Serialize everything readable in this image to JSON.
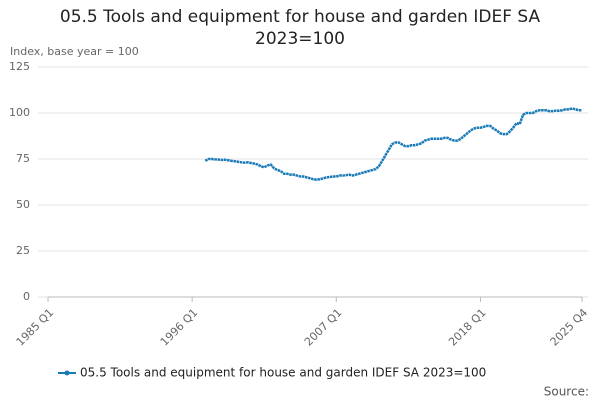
{
  "chart_data": {
    "type": "line",
    "title": "05.5 Tools and equipment for house and garden IDEF SA 2023=100",
    "y_label": "Index, base year = 100",
    "source": "Source:",
    "categories": [
      "1985 Q1",
      null,
      null,
      null,
      null,
      null,
      null,
      null,
      null,
      null,
      null,
      null,
      null,
      null,
      null,
      null,
      null,
      null,
      null,
      null,
      null,
      null,
      null,
      null,
      null,
      null,
      null,
      null,
      null,
      null,
      null,
      null,
      null,
      null,
      null,
      null,
      null,
      null,
      null,
      null,
      null,
      null,
      null,
      null,
      "1996 Q1",
      null,
      null,
      null,
      null,
      null,
      null,
      null,
      null,
      null,
      null,
      null,
      null,
      null,
      null,
      null,
      null,
      null,
      null,
      null,
      null,
      null,
      null,
      null,
      null,
      null,
      null,
      null,
      null,
      null,
      null,
      null,
      null,
      null,
      null,
      null,
      null,
      null,
      null,
      null,
      null,
      null,
      null,
      null,
      "2007 Q1",
      null,
      null,
      null,
      null,
      null,
      null,
      null,
      null,
      null,
      null,
      null,
      null,
      null,
      null,
      null,
      null,
      null,
      null,
      null,
      null,
      null,
      null,
      null,
      null,
      null,
      null,
      null,
      null,
      null,
      null,
      null,
      null,
      null,
      null,
      null,
      null,
      null,
      null,
      null,
      null,
      null,
      null,
      null,
      "2018 Q1",
      null,
      null,
      null,
      null,
      null,
      null,
      null,
      null,
      null,
      null,
      null,
      null,
      null,
      null,
      null,
      null,
      null,
      null,
      null,
      null,
      null,
      null,
      null,
      null,
      null,
      null,
      null,
      null,
      null,
      null,
      "2025 Q4"
    ],
    "series": [
      {
        "name": "05.5 Tools and equipment for house and garden IDEF SA 2023=100",
        "color": "#1a7ab8",
        "values": [
          null,
          null,
          null,
          null,
          null,
          null,
          null,
          null,
          null,
          null,
          null,
          null,
          null,
          null,
          null,
          null,
          null,
          null,
          null,
          null,
          null,
          null,
          null,
          null,
          null,
          null,
          null,
          null,
          null,
          null,
          null,
          null,
          null,
          null,
          null,
          null,
          null,
          null,
          null,
          null,
          null,
          null,
          null,
          null,
          null,
          null,
          null,
          null,
          74,
          75,
          75,
          74.8,
          74.7,
          74.5,
          74.6,
          74.3,
          74,
          73.8,
          73.5,
          73.2,
          73,
          73.2,
          72.8,
          72.5,
          72,
          71,
          70.5,
          71.5,
          72,
          70,
          69,
          68.5,
          67,
          67,
          66.5,
          66.5,
          66,
          65.5,
          65.5,
          65,
          64.5,
          64,
          63.8,
          64,
          64.5,
          65,
          65.2,
          65.5,
          65.5,
          66,
          66,
          66.2,
          66.5,
          66,
          66.5,
          67,
          67.5,
          68,
          68.5,
          69,
          69.5,
          71,
          74,
          77,
          80,
          83,
          84,
          84,
          83,
          82,
          82,
          82.5,
          82.5,
          83,
          83.5,
          85,
          85.5,
          86,
          86,
          86,
          86,
          86.5,
          86.5,
          85.5,
          85,
          85,
          86,
          87.5,
          89,
          90.5,
          91.5,
          92,
          92,
          92.5,
          93,
          93,
          91.5,
          90.5,
          89,
          88.5,
          88.5,
          90,
          92,
          94.5,
          94,
          99,
          100,
          100,
          100,
          101,
          101.5,
          101.5,
          101.5,
          101,
          101,
          101.3,
          101.2,
          101.5,
          102,
          102,
          102.5,
          102,
          101.5,
          101.5
        ]
      }
    ],
    "ylim": [
      0,
      125
    ],
    "yticks": [
      0,
      25,
      50,
      75,
      100,
      125
    ],
    "grid": true
  }
}
